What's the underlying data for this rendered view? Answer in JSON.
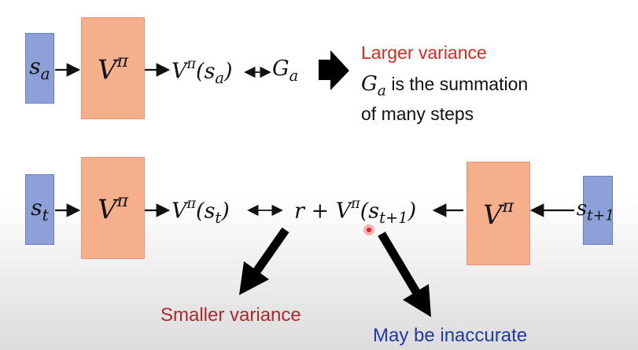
{
  "row1": {
    "state": {
      "base": "s",
      "sub": "a"
    },
    "value_box": {
      "base": "V",
      "sup": "π"
    },
    "expr_left": {
      "base": "V",
      "sup": "π",
      "arg": "(s",
      "arg_sub": "a",
      "close": ")"
    },
    "target": {
      "base": "G",
      "sub": "a"
    },
    "note_title": "Larger variance",
    "note_line1_base": "G",
    "note_line1_sub": "a",
    "note_line1_rest": " is the summation",
    "note_line2": "of many steps"
  },
  "row2": {
    "state": {
      "base": "s",
      "sub": "t"
    },
    "value_box_left": {
      "base": "V",
      "sup": "π"
    },
    "expr_left": {
      "base": "V",
      "sup": "π",
      "arg": "(s",
      "arg_sub": "t",
      "close": ")"
    },
    "expr_right_prefix": "r + ",
    "expr_right": {
      "base": "V",
      "sup": "π",
      "arg": "(s",
      "arg_sub": "t+1",
      "close": ")"
    },
    "value_box_right": {
      "base": "V",
      "sup": "π"
    },
    "state_next": {
      "base": "s",
      "sub": "t+1"
    }
  },
  "annotations": {
    "smaller_variance": "Smaller variance",
    "inaccurate": "May be inaccurate"
  },
  "colors": {
    "state_fill": "#8da0d8",
    "value_fill": "#f5b08b",
    "red_text": "#d62b1f",
    "dark_red_text": "#b0282b",
    "blue_text": "#1e3aa8",
    "pointer_dot": "#e32222"
  }
}
